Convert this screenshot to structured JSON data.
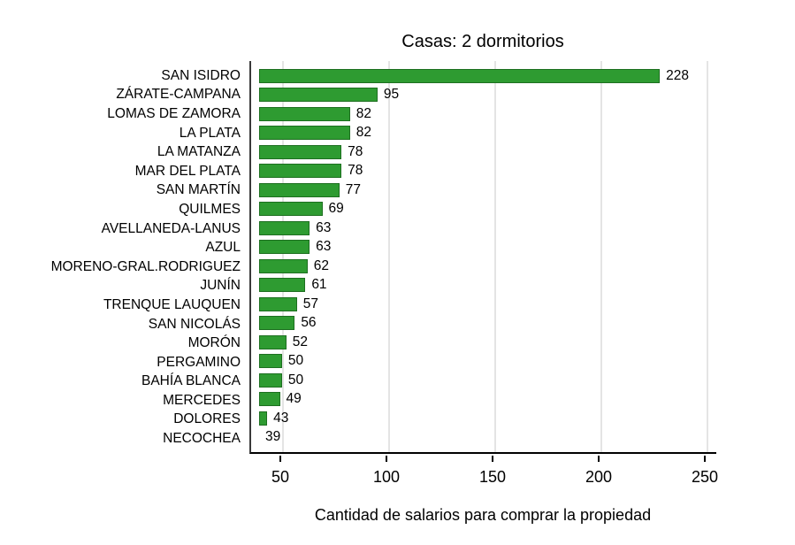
{
  "chart_data": {
    "type": "bar",
    "orientation": "horizontal",
    "title": "Casas: 2 dormitorios",
    "xlabel": "Cantidad de salarios para comprar la propiedad",
    "ylabel": "",
    "categories": [
      "SAN ISIDRO",
      "ZÁRATE-CAMPANA",
      "LOMAS DE ZAMORA",
      "LA PLATA",
      "LA MATANZA",
      "MAR DEL PLATA",
      "SAN MARTÍN",
      "QUILMES",
      "AVELLANEDA-LANUS",
      "AZUL",
      "MORENO-GRAL.RODRIGUEZ",
      "JUNÍN",
      "TRENQUE LAUQUEN",
      "SAN NICOLÁS",
      "MORÓN",
      "PERGAMINO",
      "BAHÍA BLANCA",
      "MERCEDES",
      "DOLORES",
      "NECOCHEA"
    ],
    "values": [
      228,
      95,
      82,
      82,
      78,
      78,
      77,
      69,
      63,
      63,
      62,
      61,
      57,
      56,
      52,
      50,
      50,
      49,
      43,
      39
    ],
    "xticks": [
      50,
      100,
      150,
      200,
      250
    ],
    "xlim": [
      39,
      255
    ],
    "grid": "vertical-light",
    "legend": "none",
    "colors": {
      "bar_fill": "#2e9b31",
      "bar_border": "#1d6f20",
      "gridline": "#e4e4e4",
      "axis_left": "#3a3a3a",
      "axis_bottom": "#000000",
      "text": "#000000",
      "background": "#ffffff"
    }
  }
}
